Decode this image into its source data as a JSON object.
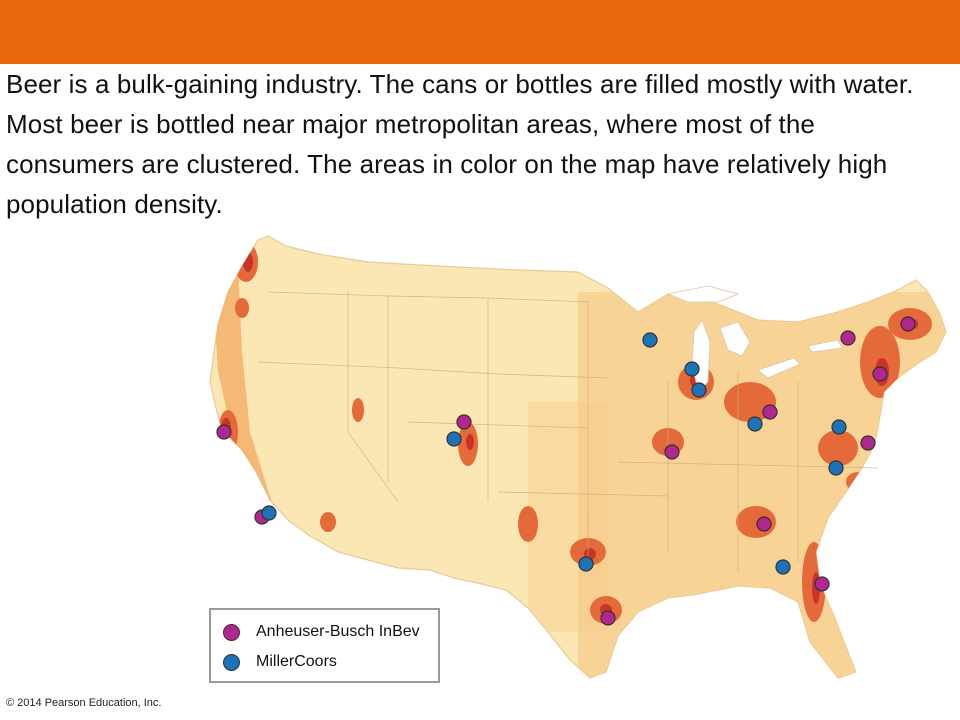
{
  "slide": {
    "header_color": "#E8690C",
    "caption": "Beer is a bulk-gaining industry. The cans or bottles are filled mostly with water. Most beer is bottled near major metropolitan areas, where most of the consumers are clustered. The areas in color on the map have relatively high population density.",
    "copyright": "© 2014 Pearson Education, Inc."
  },
  "map": {
    "region": "Contiguous United States",
    "base_color": "#FBE7B4",
    "density_colors": [
      "#F7C784",
      "#F2A05A",
      "#E46A3A",
      "#C8332A"
    ],
    "companies": [
      {
        "name": "Anheuser-Busch InBev",
        "color": "#B1278F",
        "breweries": [
          "Fairfield, CA",
          "Los Angeles, CA",
          "Fort Collins, CO",
          "Houston, TX",
          "St. Louis, MO",
          "Columbus, OH",
          "Cartersville, GA",
          "Jacksonville, FL",
          "Williamsburg, VA",
          "Newark, NJ",
          "Baldwinsville, NY",
          "Merrimack, NH"
        ]
      },
      {
        "name": "MillerCoors",
        "color": "#1C74B8",
        "breweries": [
          "Irwindale, CA",
          "Golden, CO",
          "Fort Worth, TX",
          "Milwaukee, WI",
          "Chippewa Falls, WI",
          "Chicago area, IL",
          "Trenton, OH",
          "Elkton, VA",
          "Eden, NC",
          "Albany, GA"
        ]
      }
    ]
  },
  "legend": {
    "items": [
      {
        "label": "Anheuser-Busch InBev",
        "color": "#B1278F",
        "marker": "purple-circle"
      },
      {
        "label": "MillerCoors",
        "color": "#1C74B8",
        "marker": "blue-circle"
      }
    ]
  }
}
